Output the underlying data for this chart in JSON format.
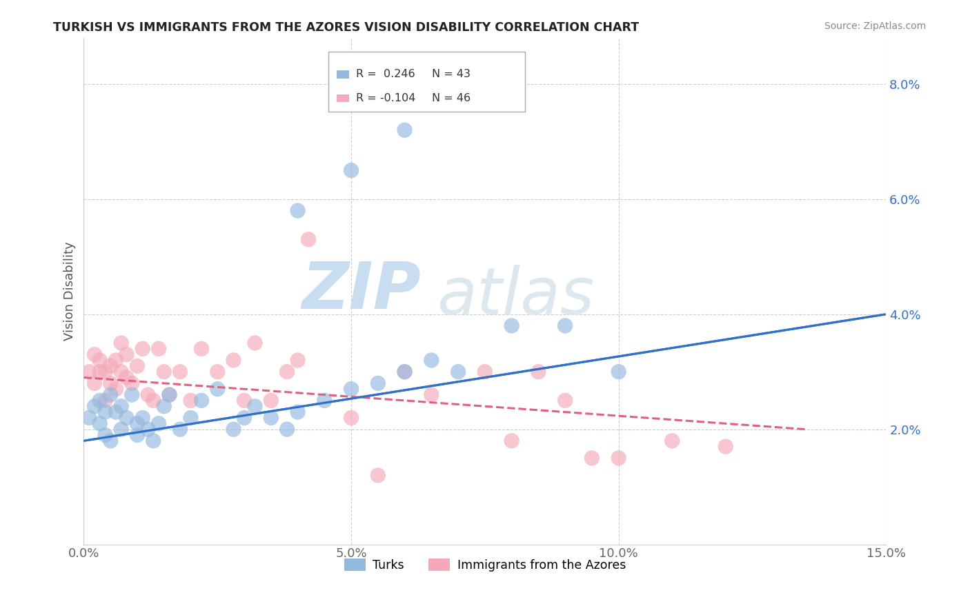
{
  "title": "TURKISH VS IMMIGRANTS FROM THE AZORES VISION DISABILITY CORRELATION CHART",
  "source": "Source: ZipAtlas.com",
  "ylabel": "Vision Disability",
  "xlim": [
    0.0,
    0.15
  ],
  "ylim": [
    0.0,
    0.088
  ],
  "yticks": [
    0.02,
    0.04,
    0.06,
    0.08
  ],
  "ytick_labels": [
    "2.0%",
    "4.0%",
    "6.0%",
    "8.0%"
  ],
  "xticks": [
    0.0,
    0.05,
    0.1,
    0.15
  ],
  "xtick_labels": [
    "0.0%",
    "5.0%",
    "10.0%",
    "15.0%"
  ],
  "turks_x": [
    0.001,
    0.002,
    0.003,
    0.003,
    0.004,
    0.004,
    0.005,
    0.005,
    0.006,
    0.007,
    0.007,
    0.008,
    0.009,
    0.01,
    0.01,
    0.011,
    0.012,
    0.013,
    0.014,
    0.015,
    0.016,
    0.018,
    0.02,
    0.022,
    0.025,
    0.028,
    0.03,
    0.032,
    0.035,
    0.038,
    0.04,
    0.045,
    0.05,
    0.055,
    0.06,
    0.065,
    0.07,
    0.08,
    0.09,
    0.1,
    0.06,
    0.05,
    0.04
  ],
  "turks_y": [
    0.022,
    0.024,
    0.021,
    0.025,
    0.019,
    0.023,
    0.018,
    0.026,
    0.023,
    0.02,
    0.024,
    0.022,
    0.026,
    0.021,
    0.019,
    0.022,
    0.02,
    0.018,
    0.021,
    0.024,
    0.026,
    0.02,
    0.022,
    0.025,
    0.027,
    0.02,
    0.022,
    0.024,
    0.022,
    0.02,
    0.023,
    0.025,
    0.027,
    0.028,
    0.03,
    0.032,
    0.03,
    0.038,
    0.038,
    0.03,
    0.072,
    0.065,
    0.058
  ],
  "azores_x": [
    0.001,
    0.002,
    0.002,
    0.003,
    0.003,
    0.004,
    0.004,
    0.005,
    0.005,
    0.006,
    0.006,
    0.007,
    0.007,
    0.008,
    0.008,
    0.009,
    0.01,
    0.011,
    0.012,
    0.013,
    0.014,
    0.015,
    0.016,
    0.018,
    0.02,
    0.022,
    0.025,
    0.028,
    0.03,
    0.032,
    0.035,
    0.038,
    0.04,
    0.042,
    0.05,
    0.055,
    0.06,
    0.065,
    0.075,
    0.08,
    0.085,
    0.09,
    0.095,
    0.1,
    0.11,
    0.12
  ],
  "azores_y": [
    0.03,
    0.028,
    0.033,
    0.032,
    0.03,
    0.025,
    0.03,
    0.028,
    0.031,
    0.027,
    0.032,
    0.03,
    0.035,
    0.029,
    0.033,
    0.028,
    0.031,
    0.034,
    0.026,
    0.025,
    0.034,
    0.03,
    0.026,
    0.03,
    0.025,
    0.034,
    0.03,
    0.032,
    0.025,
    0.035,
    0.025,
    0.03,
    0.032,
    0.053,
    0.022,
    0.012,
    0.03,
    0.026,
    0.03,
    0.018,
    0.03,
    0.025,
    0.015,
    0.015,
    0.018,
    0.017
  ],
  "turks_color": "#92b8de",
  "azores_color": "#f4a8b8",
  "turks_line_color": "#3070c8",
  "azores_line_color": "#e06080",
  "turks_R": 0.246,
  "turks_N": 43,
  "azores_R": -0.104,
  "azores_N": 46,
  "legend_R_turks": "R =  0.246",
  "legend_N_turks": "N = 43",
  "legend_R_azores": "R = -0.104",
  "legend_N_azores": "N = 46",
  "turks_label": "Turks",
  "azores_label": "Immigrants from the Azores",
  "watermark_zip": "ZIP",
  "watermark_atlas": "atlas",
  "grid_color": "#cccccc",
  "background_color": "#ffffff",
  "turk_line_x0": 0.0,
  "turk_line_x1": 0.15,
  "turk_line_y0": 0.018,
  "turk_line_y1": 0.04,
  "azores_line_x0": 0.0,
  "azores_line_x1": 0.135,
  "azores_line_y0": 0.029,
  "azores_line_y1": 0.02
}
